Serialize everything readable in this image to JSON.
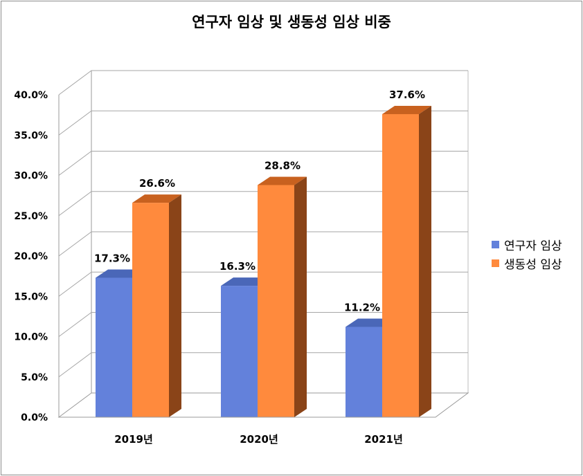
{
  "chart_data": {
    "type": "bar",
    "title": "연구자 임상 및 생동성 임상 비중",
    "categories": [
      "2019년",
      "2020년",
      "2021년"
    ],
    "series": [
      {
        "name": "연구자 임상",
        "values": [
          17.3,
          16.3,
          11.2
        ],
        "labels": [
          "17.3%",
          "16.3%",
          "11.2%"
        ],
        "color": "#6381db"
      },
      {
        "name": "생동성 임상",
        "values": [
          26.6,
          28.8,
          37.6
        ],
        "labels": [
          "26.6%",
          "28.8%",
          "37.6%"
        ],
        "color": "#ff8a3d"
      }
    ],
    "ylim": [
      0,
      40
    ],
    "yticks": [
      "0.0%",
      "5.0%",
      "10.0%",
      "15.0%",
      "20.0%",
      "25.0%",
      "30.0%",
      "35.0%",
      "40.0%"
    ],
    "grid": true,
    "legend": "right",
    "style": "3d-clustered-column"
  }
}
